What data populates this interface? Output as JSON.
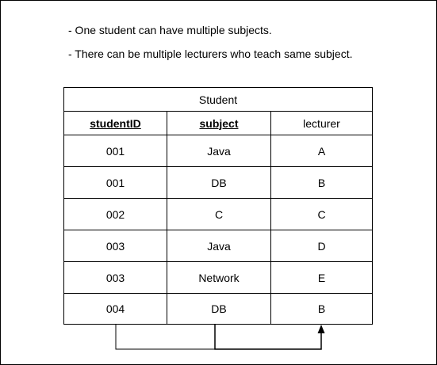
{
  "notes": [
    "- One student can have multiple subjects.",
    "- There can be multiple lecturers who teach same subject."
  ],
  "table": {
    "title": "Student",
    "headers": [
      "studentID",
      "subject",
      "lecturer"
    ],
    "rows": [
      [
        "001",
        "Java",
        "A"
      ],
      [
        "001",
        "DB",
        "B"
      ],
      [
        "002",
        "C",
        "C"
      ],
      [
        "003",
        "Java",
        "D"
      ],
      [
        "003",
        "Network",
        "E"
      ],
      [
        "004",
        "DB",
        "B"
      ]
    ]
  }
}
